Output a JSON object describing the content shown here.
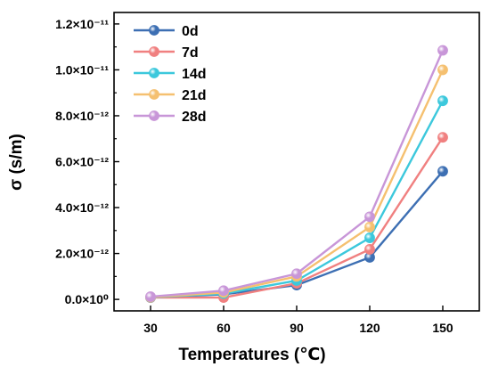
{
  "chart_data": {
    "type": "line",
    "x": [
      30,
      60,
      90,
      120,
      150
    ],
    "xlabel": "Temperatures (℃)",
    "ylabel": "σ (s/m)",
    "xlim": [
      15,
      165
    ],
    "ylim": [
      -5e-13,
      1.25e-11
    ],
    "xticks": [
      "30",
      "60",
      "90",
      "120",
      "150"
    ],
    "yticks": [
      {
        "value": 0,
        "label": "0.0×10⁰"
      },
      {
        "value": 2e-12,
        "label": "2.0×10⁻¹²"
      },
      {
        "value": 4e-12,
        "label": "4.0×10⁻¹²"
      },
      {
        "value": 6e-12,
        "label": "6.0×10⁻¹²"
      },
      {
        "value": 8e-12,
        "label": "8.0×10⁻¹²"
      },
      {
        "value": 1e-11,
        "label": "1.0×10⁻¹¹"
      },
      {
        "value": 1.2e-11,
        "label": "1.2×10⁻¹¹"
      }
    ],
    "grid": false,
    "legend_position": "top-left",
    "series": [
      {
        "name": "0d",
        "color": "#3d6fb3",
        "values": [
          8e-14,
          2.2e-13,
          6.2e-13,
          1.83e-12,
          5.58e-12
        ]
      },
      {
        "name": "7d",
        "color": "#f08080",
        "values": [
          8e-14,
          8e-14,
          7e-13,
          2.18e-12,
          7.06e-12
        ]
      },
      {
        "name": "14d",
        "color": "#3cc8dc",
        "values": [
          9e-14,
          2.5e-13,
          8.2e-13,
          2.68e-12,
          8.65e-12
        ]
      },
      {
        "name": "21d",
        "color": "#f5c070",
        "values": [
          1e-13,
          3e-13,
          1e-12,
          3.15e-12,
          1e-11
        ]
      },
      {
        "name": "28d",
        "color": "#c896d8",
        "values": [
          1.2e-13,
          3.8e-13,
          1.12e-12,
          3.6e-12,
          1.085e-11
        ]
      }
    ]
  }
}
